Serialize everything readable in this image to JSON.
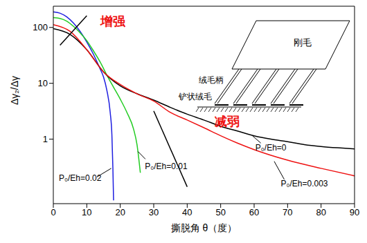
{
  "chart_data": {
    "type": "line",
    "xlabel": "撕脱角 θ（度）",
    "ylabel": "Δγ₂/Δγ",
    "log": "y",
    "grid": false,
    "xlim": [
      0,
      90
    ],
    "xticks": [
      0,
      10,
      20,
      30,
      40,
      50,
      60,
      70,
      80,
      90
    ],
    "ylim": [
      0.07,
      240
    ],
    "yticks": [
      1,
      10,
      100
    ],
    "series": [
      {
        "name": "P₀/Eh=0.02",
        "color": "#1f1fe0",
        "label_at": [
          8,
          0.2
        ],
        "arrow": [
          [
            13,
            0.21
          ],
          [
            17.3,
            0.3
          ]
        ],
        "x": [
          0,
          2,
          4,
          6,
          8,
          10,
          12,
          14,
          15,
          16,
          17,
          17.5,
          17.8,
          18
        ],
        "values": [
          190,
          180,
          155,
          120,
          85,
          55,
          33,
          18,
          13,
          7.5,
          3,
          1.2,
          0.3,
          0.08
        ]
      },
      {
        "name": "P₀/Eh=0.01",
        "color": "#22cc22",
        "label_at": [
          33.7,
          0.33
        ],
        "arrow": [
          [
            27.5,
            0.44
          ],
          [
            25.3,
            0.6
          ]
        ],
        "x": [
          0,
          2,
          4,
          6,
          8,
          10,
          12,
          14,
          16,
          18,
          20,
          22,
          24,
          25,
          26
        ],
        "values": [
          150,
          145,
          130,
          105,
          80,
          58,
          38,
          24,
          14,
          8.5,
          5.2,
          3,
          1.5,
          0.8,
          0.25
        ]
      },
      {
        "name": "P₀/Eh=0",
        "color": "#000000",
        "label_at": [
          65,
          0.71
        ],
        "arrow": [
          [
            62,
            0.85
          ],
          [
            59.5,
            1.15
          ]
        ],
        "x": [
          0,
          5,
          10,
          15,
          20,
          25,
          30,
          35,
          40,
          45,
          50,
          55,
          60,
          65,
          70,
          75,
          80,
          85,
          90
        ],
        "values": [
          95,
          75,
          40,
          16,
          9,
          6.5,
          5,
          3.7,
          2.8,
          2.2,
          1.7,
          1.4,
          1.15,
          1,
          0.9,
          0.8,
          0.74,
          0.7,
          0.67
        ]
      },
      {
        "name": "P₀/Eh=0.003",
        "color": "#ee1111",
        "label_at": [
          75,
          0.16
        ],
        "arrow": [
          [
            69,
            0.19
          ],
          [
            66,
            0.4
          ]
        ],
        "x": [
          0,
          5,
          10,
          15,
          20,
          25,
          30,
          35,
          40,
          45,
          50,
          55,
          60,
          70,
          80,
          90
        ],
        "values": [
          112,
          85,
          40,
          16,
          9.5,
          6.5,
          4.8,
          3,
          2.2,
          1.6,
          1.15,
          0.85,
          0.65,
          0.42,
          0.3,
          0.22
        ]
      }
    ],
    "annotations": [
      {
        "text": "增强",
        "x": 17.8,
        "y": 129,
        "color": "#ee1111",
        "arrow": [
          [
            2,
            48
          ],
          [
            10,
            162
          ]
        ]
      },
      {
        "text": "减弱",
        "x": 52,
        "y": 2.1,
        "color": "#ee1111",
        "arrow": [
          [
            30,
            3.2
          ],
          [
            40,
            0.14
          ]
        ]
      }
    ],
    "inset_labels": {
      "bristle": "刚毛",
      "stalk": "绒毛柄",
      "spatula": "铲状绒毛"
    }
  }
}
